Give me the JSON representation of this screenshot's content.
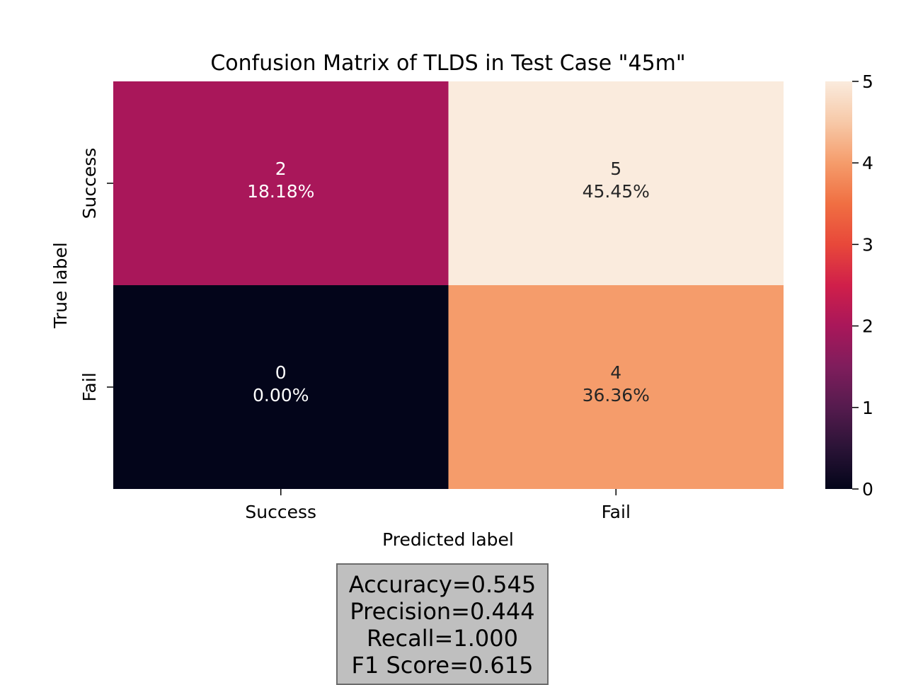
{
  "chart_data": {
    "type": "heatmap",
    "title": "Confusion Matrix of TLDS in Test Case \"45m\"",
    "xlabel": "Predicted label",
    "ylabel": "True label",
    "x_categories": [
      "Success",
      "Fail"
    ],
    "y_categories": [
      "Success",
      "Fail"
    ],
    "values": [
      [
        2,
        5
      ],
      [
        0,
        4
      ]
    ],
    "annotations": [
      [
        "18.18%",
        "45.45%"
      ],
      [
        "0.00%",
        "36.36%"
      ]
    ],
    "colorbar": {
      "range": [
        0,
        5
      ],
      "ticks": [
        "0",
        "1",
        "2",
        "3",
        "4",
        "5"
      ],
      "colormap": "rocket"
    },
    "grid": false
  },
  "metrics": {
    "lines": [
      "Accuracy=0.545",
      "Precision=0.444",
      "Recall=1.000",
      "F1 Score=0.615"
    ]
  }
}
